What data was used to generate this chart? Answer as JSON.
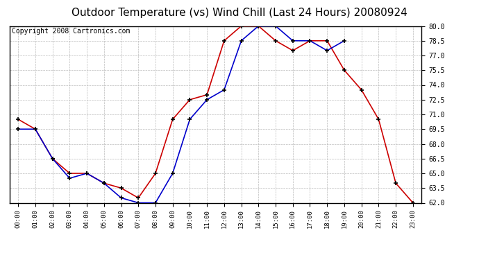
{
  "title": "Outdoor Temperature (vs) Wind Chill (Last 24 Hours) 20080924",
  "copyright": "Copyright 2008 Cartronics.com",
  "hours": [
    "00:00",
    "01:00",
    "02:00",
    "03:00",
    "04:00",
    "05:00",
    "06:00",
    "07:00",
    "08:00",
    "09:00",
    "10:00",
    "11:00",
    "12:00",
    "13:00",
    "14:00",
    "15:00",
    "16:00",
    "17:00",
    "18:00",
    "19:00",
    "20:00",
    "21:00",
    "22:00",
    "23:00"
  ],
  "temp": [
    70.5,
    69.5,
    66.5,
    65.0,
    65.0,
    64.0,
    63.5,
    62.5,
    65.0,
    70.5,
    72.5,
    73.0,
    78.5,
    80.0,
    80.0,
    78.5,
    77.5,
    78.5,
    78.5,
    75.5,
    73.5,
    70.5,
    64.0,
    62.0
  ],
  "windchill": [
    69.5,
    69.5,
    66.5,
    64.5,
    65.0,
    64.0,
    62.5,
    62.0,
    62.0,
    65.0,
    70.5,
    72.5,
    73.5,
    78.5,
    80.0,
    80.0,
    78.5,
    78.5,
    77.5,
    78.5,
    null,
    null,
    null,
    null
  ],
  "temp_color": "#cc0000",
  "windchill_color": "#0000cc",
  "ylim_min": 62.0,
  "ylim_max": 80.0,
  "background_color": "#ffffff",
  "grid_color": "#bbbbbb",
  "title_fontsize": 11,
  "copyright_fontsize": 7
}
